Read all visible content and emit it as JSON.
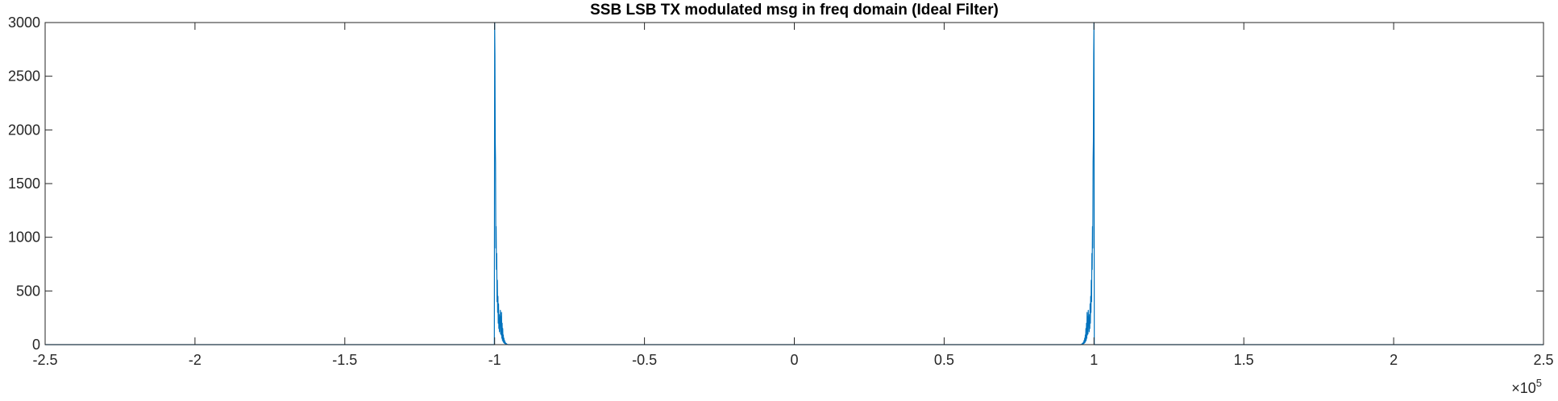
{
  "chart_data": {
    "type": "line",
    "title": "SSB LSB TX modulated msg in freq domain (Ideal Filter)",
    "xlabel": "",
    "ylabel": "",
    "xlim": [
      -250000,
      250000
    ],
    "ylim": [
      0,
      3000
    ],
    "x_exponent_label": "×10",
    "x_exponent_power": "5",
    "x_ticks": [
      -250000,
      -200000,
      -150000,
      -100000,
      -50000,
      0,
      50000,
      100000,
      150000,
      200000,
      250000
    ],
    "x_tick_labels": [
      "-2.5",
      "-2",
      "-1.5",
      "-1",
      "-0.5",
      "0",
      "0.5",
      "1",
      "1.5",
      "2",
      "2.5"
    ],
    "y_ticks": [
      0,
      500,
      1000,
      1500,
      2000,
      2500,
      3000
    ],
    "y_tick_labels": [
      "0",
      "500",
      "1000",
      "1500",
      "2000",
      "2500",
      "3000"
    ],
    "grid": false,
    "series": [
      {
        "color": "#0072BD",
        "x": [
          -250000,
          -100800,
          -100700,
          -100600,
          -100500,
          -100400,
          -100300,
          -100200,
          -100100,
          -100000,
          -99900,
          -99800,
          -99700,
          -99600,
          -99500,
          -99400,
          -99300,
          -99200,
          -99100,
          -99000,
          -98900,
          -98800,
          -98700,
          -98600,
          -98500,
          -98400,
          -98300,
          -98200,
          -98100,
          -98000,
          -97900,
          -97800,
          -97700,
          -97600,
          -97500,
          -97400,
          -97300,
          -97200,
          -97100,
          -97000,
          -96900,
          -96800,
          -96700,
          -96600,
          -96500,
          -96400,
          -96300,
          -96200,
          -96100,
          -96000,
          -95900,
          -95800,
          -95500,
          -95000,
          95000,
          95500,
          95800,
          95900,
          96000,
          96100,
          96200,
          96300,
          96400,
          96500,
          96600,
          96700,
          96800,
          96900,
          97000,
          97100,
          97200,
          97300,
          97400,
          97500,
          97600,
          97700,
          97800,
          97900,
          98000,
          98100,
          98200,
          98300,
          98400,
          98500,
          98600,
          98700,
          98800,
          98900,
          99000,
          99100,
          99200,
          99300,
          99400,
          99500,
          99600,
          99700,
          99800,
          99900,
          100000,
          100100,
          100200,
          100300,
          100400,
          100500,
          100600,
          100700,
          100800,
          250000
        ],
        "y": [
          0,
          0,
          0,
          0,
          0,
          0,
          0,
          0,
          0,
          3000,
          2700,
          1900,
          1700,
          900,
          1100,
          700,
          850,
          400,
          600,
          300,
          450,
          200,
          380,
          150,
          280,
          120,
          250,
          180,
          320,
          100,
          260,
          90,
          300,
          60,
          200,
          40,
          150,
          30,
          90,
          20,
          60,
          15,
          40,
          10,
          25,
          8,
          15,
          5,
          10,
          3,
          5,
          2,
          0,
          0,
          0,
          0,
          2,
          5,
          3,
          10,
          5,
          15,
          8,
          25,
          10,
          40,
          15,
          60,
          20,
          90,
          30,
          150,
          40,
          200,
          60,
          300,
          90,
          260,
          100,
          320,
          180,
          250,
          120,
          280,
          150,
          380,
          200,
          450,
          300,
          600,
          400,
          850,
          700,
          1100,
          900,
          1700,
          1900,
          2700,
          3000,
          0,
          0,
          0,
          0,
          0,
          0,
          0,
          0,
          0
        ]
      }
    ]
  }
}
